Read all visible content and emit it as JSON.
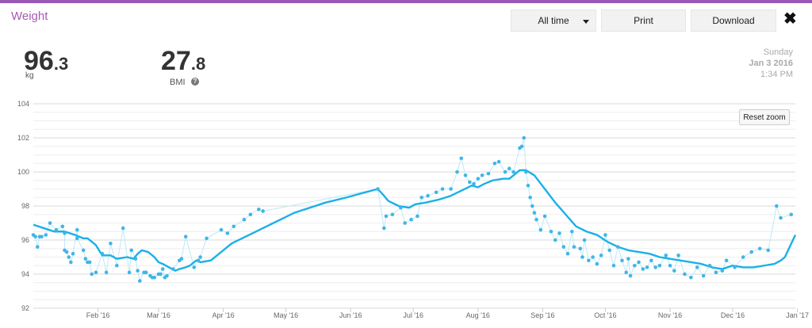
{
  "header": {
    "title": "Weight"
  },
  "controls": {
    "range_label": "All time",
    "print_label": "Print",
    "download_label": "Download",
    "close_glyph": "✖"
  },
  "stats": {
    "weight": {
      "int": "96",
      "dec": ".3",
      "unit": "kg"
    },
    "bmi": {
      "int": "27",
      "dec": ".8",
      "label": "BMI",
      "help_glyph": "?"
    }
  },
  "timestamp": {
    "day": "Sunday",
    "date": "Jan 3 2016",
    "time": "1:34 PM"
  },
  "reset_label": "Reset zoom",
  "colors": {
    "accent": "#9b59b6",
    "series": "#1ab0e8",
    "dots": "#3fb6e8"
  },
  "chart_data": {
    "type": "line",
    "ylim": [
      92,
      104
    ],
    "yticks": [
      "92",
      "94",
      "96",
      "98",
      "100",
      "102",
      "104"
    ],
    "xlim": [
      0,
      365
    ],
    "xticks": [
      {
        "label": "Feb '16",
        "x": 31
      },
      {
        "label": "Mar '16",
        "x": 60
      },
      {
        "label": "Apr '16",
        "x": 91
      },
      {
        "label": "May '16",
        "x": 121
      },
      {
        "label": "Jun '16",
        "x": 152
      },
      {
        "label": "Jul '16",
        "x": 182
      },
      {
        "label": "Aug '16",
        "x": 213
      },
      {
        "label": "Sep '16",
        "x": 244
      },
      {
        "label": "Oct '16",
        "x": 274
      },
      {
        "label": "Nov '16",
        "x": 305
      },
      {
        "label": "Dec '16",
        "x": 335
      },
      {
        "label": "Jan '17",
        "x": 366
      }
    ],
    "series": [
      {
        "kind": "trend",
        "x": [
          0,
          5,
          10,
          15,
          20,
          24,
          26,
          30,
          33,
          37,
          40,
          45,
          48,
          50,
          52,
          55,
          58,
          60,
          62,
          65,
          68,
          70,
          73,
          75,
          78,
          80,
          85,
          90,
          95,
          100,
          105,
          110,
          115,
          120,
          125,
          130,
          135,
          140,
          150,
          165,
          168,
          170,
          175,
          180,
          183,
          188,
          195,
          200,
          205,
          210,
          213,
          216,
          220,
          225,
          228,
          230,
          233,
          236,
          240,
          245,
          250,
          255,
          260,
          265,
          270,
          275,
          280,
          285,
          290,
          295,
          300,
          305,
          310,
          315,
          320,
          325,
          330,
          335,
          340,
          345,
          350,
          355,
          358,
          360,
          365
        ],
        "values": [
          96.9,
          96.7,
          96.5,
          96.5,
          96.3,
          96.1,
          96.1,
          95.7,
          95.1,
          95.1,
          94.9,
          95.0,
          94.9,
          95.2,
          95.4,
          95.3,
          95.0,
          94.7,
          94.6,
          94.4,
          94.2,
          94.3,
          94.4,
          94.5,
          94.8,
          94.7,
          94.8,
          95.3,
          95.8,
          96.1,
          96.4,
          96.7,
          97.0,
          97.3,
          97.6,
          97.8,
          98.0,
          98.2,
          98.5,
          99.0,
          98.6,
          98.3,
          98.0,
          97.9,
          98.1,
          98.2,
          98.4,
          98.6,
          98.9,
          99.2,
          99.1,
          99.3,
          99.5,
          99.6,
          99.6,
          99.8,
          100.1,
          100.1,
          99.8,
          99.0,
          98.2,
          97.5,
          96.8,
          96.5,
          96.3,
          95.9,
          95.6,
          95.4,
          95.3,
          95.2,
          95.0,
          94.9,
          94.8,
          94.7,
          94.6,
          94.4,
          94.3,
          94.5,
          94.4,
          94.4,
          94.5,
          94.6,
          94.8,
          95.0,
          96.3
        ]
      },
      {
        "kind": "measurements",
        "points": [
          [
            0,
            96.3
          ],
          [
            1,
            96.2
          ],
          [
            2,
            95.6
          ],
          [
            3,
            96.2
          ],
          [
            4,
            96.2
          ],
          [
            6,
            96.3
          ],
          [
            8,
            97.0
          ],
          [
            11,
            96.6
          ],
          [
            14,
            96.8
          ],
          [
            15,
            96.4
          ],
          [
            15,
            95.4
          ],
          [
            16,
            95.3
          ],
          [
            17,
            95.0
          ],
          [
            18,
            94.7
          ],
          [
            19,
            95.2
          ],
          [
            21,
            96.6
          ],
          [
            21,
            96.1
          ],
          [
            24,
            95.4
          ],
          [
            25,
            94.9
          ],
          [
            26,
            94.7
          ],
          [
            27,
            94.7
          ],
          [
            28,
            94.0
          ],
          [
            30,
            94.1
          ],
          [
            33,
            95.2
          ],
          [
            35,
            94.1
          ],
          [
            37,
            95.8
          ],
          [
            40,
            94.5
          ],
          [
            43,
            96.7
          ],
          [
            46,
            94.1
          ],
          [
            47,
            95.4
          ],
          [
            49,
            94.9
          ],
          [
            50,
            94.2
          ],
          [
            51,
            93.6
          ],
          [
            53,
            94.1
          ],
          [
            54,
            94.1
          ],
          [
            56,
            93.9
          ],
          [
            57,
            93.8
          ],
          [
            58,
            93.8
          ],
          [
            60,
            94.0
          ],
          [
            61,
            94.0
          ],
          [
            62,
            94.3
          ],
          [
            63,
            93.8
          ],
          [
            64,
            93.9
          ],
          [
            67,
            94.3
          ],
          [
            70,
            94.8
          ],
          [
            71,
            94.9
          ],
          [
            73,
            96.2
          ],
          [
            77,
            94.4
          ],
          [
            79,
            94.8
          ],
          [
            80,
            95.0
          ],
          [
            83,
            96.1
          ],
          [
            90,
            96.6
          ],
          [
            93,
            96.4
          ],
          [
            96,
            96.8
          ],
          [
            101,
            97.2
          ],
          [
            104,
            97.5
          ],
          [
            108,
            97.8
          ],
          [
            110,
            97.7
          ],
          [
            165,
            99.0
          ],
          [
            168,
            96.7
          ],
          [
            169,
            97.4
          ],
          [
            172,
            97.5
          ],
          [
            176,
            97.9
          ],
          [
            178,
            97.0
          ],
          [
            181,
            97.2
          ],
          [
            184,
            97.4
          ],
          [
            186,
            98.5
          ],
          [
            189,
            98.6
          ],
          [
            193,
            98.8
          ],
          [
            196,
            99.0
          ],
          [
            200,
            99.0
          ],
          [
            203,
            100.0
          ],
          [
            205,
            100.8
          ],
          [
            207,
            99.8
          ],
          [
            209,
            99.4
          ],
          [
            211,
            99.3
          ],
          [
            213,
            99.6
          ],
          [
            215,
            99.8
          ],
          [
            218,
            99.9
          ],
          [
            221,
            100.5
          ],
          [
            223,
            100.6
          ],
          [
            226,
            100.0
          ],
          [
            228,
            100.2
          ],
          [
            230,
            100.0
          ],
          [
            233,
            101.4
          ],
          [
            234,
            101.5
          ],
          [
            235,
            102.0
          ],
          [
            236,
            100.0
          ],
          [
            237,
            99.2
          ],
          [
            238,
            98.5
          ],
          [
            239,
            98.0
          ],
          [
            240,
            97.6
          ],
          [
            241,
            97.2
          ],
          [
            243,
            96.6
          ],
          [
            245,
            97.4
          ],
          [
            248,
            96.5
          ],
          [
            250,
            96.0
          ],
          [
            252,
            96.4
          ],
          [
            254,
            95.6
          ],
          [
            256,
            95.2
          ],
          [
            258,
            96.5
          ],
          [
            259,
            95.6
          ],
          [
            262,
            95.5
          ],
          [
            263,
            95.0
          ],
          [
            264,
            96.0
          ],
          [
            266,
            94.8
          ],
          [
            268,
            95.0
          ],
          [
            270,
            94.6
          ],
          [
            272,
            95.1
          ],
          [
            274,
            96.3
          ],
          [
            276,
            95.4
          ],
          [
            278,
            94.5
          ],
          [
            280,
            95.6
          ],
          [
            282,
            94.8
          ],
          [
            284,
            94.1
          ],
          [
            285,
            94.9
          ],
          [
            286,
            93.9
          ],
          [
            288,
            94.5
          ],
          [
            290,
            94.7
          ],
          [
            292,
            94.3
          ],
          [
            294,
            94.4
          ],
          [
            296,
            94.8
          ],
          [
            298,
            94.4
          ],
          [
            300,
            94.5
          ],
          [
            303,
            95.1
          ],
          [
            305,
            94.5
          ],
          [
            307,
            94.2
          ],
          [
            309,
            95.1
          ],
          [
            312,
            94.0
          ],
          [
            315,
            93.8
          ],
          [
            318,
            94.4
          ],
          [
            321,
            93.9
          ],
          [
            324,
            94.5
          ],
          [
            327,
            94.1
          ],
          [
            330,
            94.2
          ],
          [
            332,
            94.8
          ],
          [
            336,
            94.4
          ],
          [
            340,
            95.0
          ],
          [
            344,
            95.3
          ],
          [
            348,
            95.5
          ],
          [
            352,
            95.4
          ],
          [
            356,
            98.0
          ],
          [
            358,
            97.3
          ],
          [
            363,
            97.5
          ]
        ]
      }
    ]
  }
}
